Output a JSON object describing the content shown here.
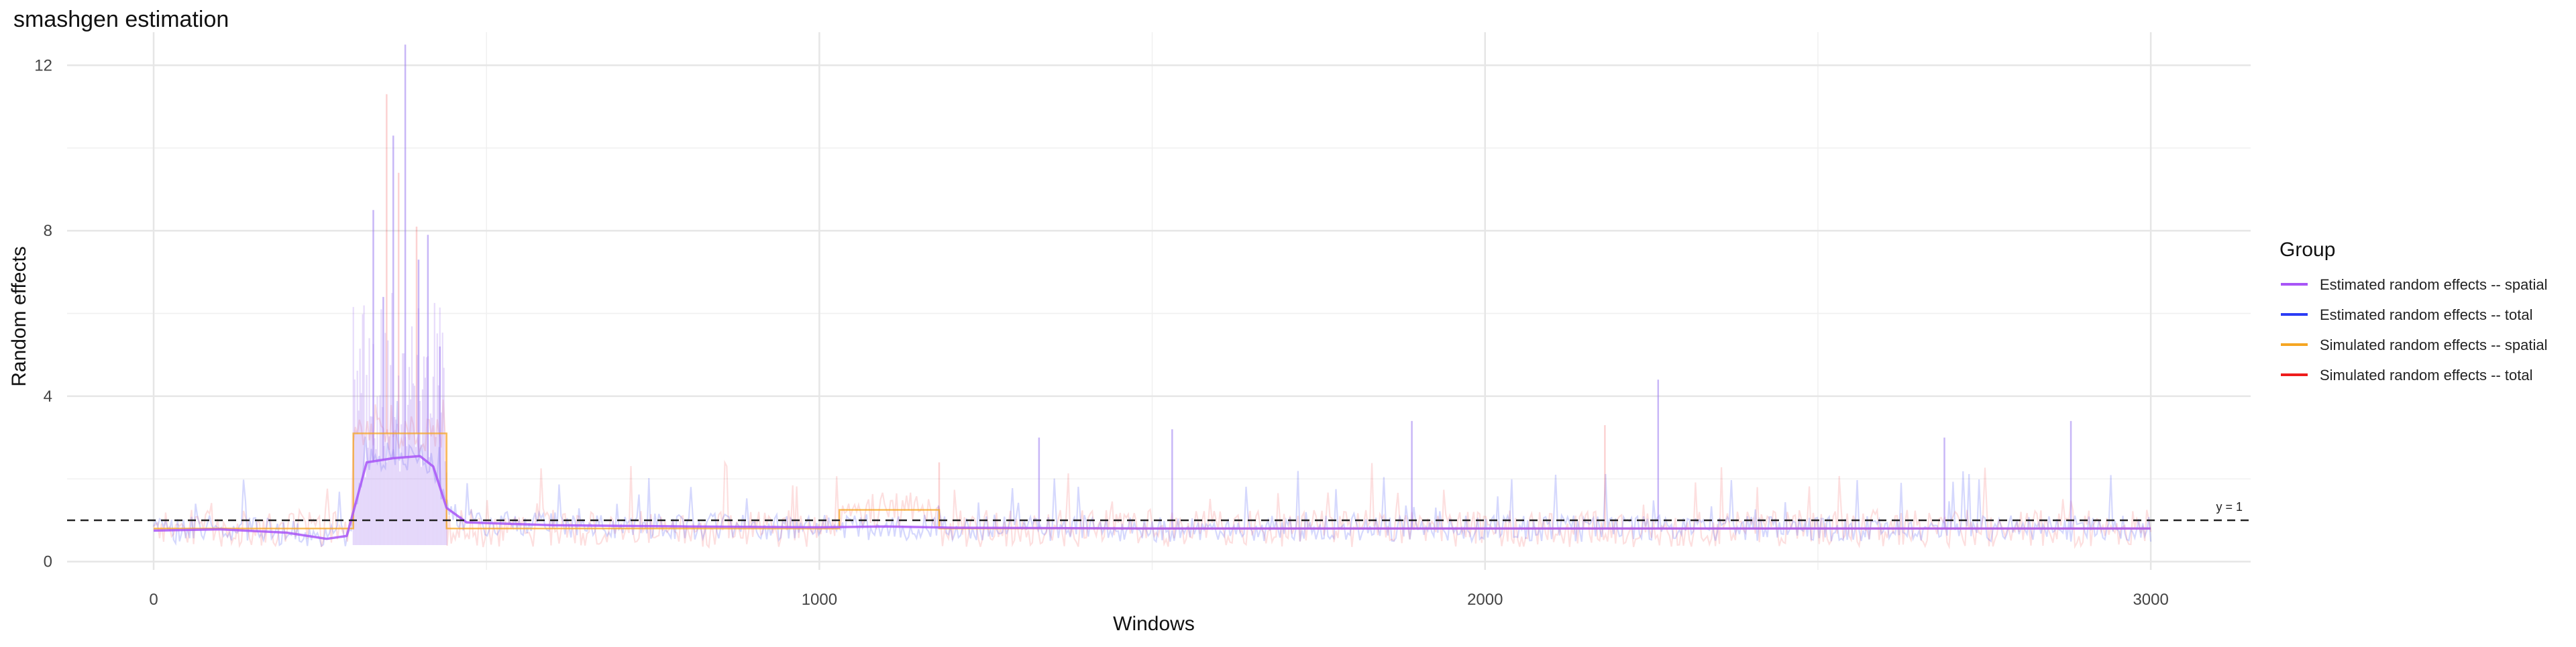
{
  "chart_data": {
    "type": "line",
    "title": "smashgen estimation",
    "xlabel": "Windows",
    "ylabel": "Random effects",
    "xlim": [
      -130,
      3150
    ],
    "ylim": [
      -0.2,
      12.8
    ],
    "x_ticks": [
      0,
      1000,
      2000,
      3000
    ],
    "y_ticks": [
      0,
      4,
      8,
      12
    ],
    "grid": true,
    "reference_line": {
      "y": 1,
      "label": "y = 1",
      "style": "dashed"
    },
    "legend": {
      "title": "Group",
      "position": "right",
      "entries": [
        {
          "label": "Estimated random effects -- spatial",
          "color": "#a855f7"
        },
        {
          "label": "Estimated random effects -- total",
          "color": "#2b3cf5"
        },
        {
          "label": "Simulated random effects -- spatial",
          "color": "#f5a623"
        },
        {
          "label": "Simulated random effects -- total",
          "color": "#ee1c1c"
        }
      ]
    },
    "series": [
      {
        "name": "Estimated random effects -- spatial",
        "color": "#a855f7",
        "x": [
          0,
          100,
          200,
          260,
          290,
          300,
          320,
          360,
          400,
          420,
          440,
          470,
          600,
          800,
          1000,
          1100,
          1200,
          1500,
          2000,
          2500,
          3000
        ],
        "y": [
          0.75,
          0.78,
          0.7,
          0.55,
          0.62,
          1.2,
          2.4,
          2.5,
          2.55,
          2.3,
          1.3,
          0.95,
          0.88,
          0.85,
          0.83,
          0.85,
          0.82,
          0.8,
          0.8,
          0.8,
          0.8
        ]
      },
      {
        "name": "Simulated random effects -- spatial",
        "color": "#f5a623",
        "x": [
          0,
          300,
          300,
          440,
          440,
          1030,
          1030,
          1180,
          1180,
          3000
        ],
        "y": [
          0.8,
          0.8,
          3.1,
          3.1,
          0.8,
          0.8,
          1.25,
          1.25,
          0.8,
          0.8
        ]
      },
      {
        "name": "Estimated random effects -- total",
        "color": "#2b3cf5",
        "note_pattern": "noisy per-window values around the spatial curve",
        "peaks": [
          [
            330,
            8.5
          ],
          [
            345,
            6.4
          ],
          [
            360,
            10.3
          ],
          [
            378,
            12.5
          ],
          [
            398,
            7.3
          ],
          [
            412,
            7.9
          ],
          [
            430,
            5.2
          ],
          [
            1330,
            3.0
          ],
          [
            1530,
            3.2
          ],
          [
            1890,
            3.4
          ],
          [
            2260,
            4.4
          ],
          [
            2690,
            3.0
          ],
          [
            2880,
            3.4
          ]
        ]
      },
      {
        "name": "Simulated random effects -- total",
        "color": "#ee1c1c",
        "note_pattern": "noisy per-window values around the simulated spatial step",
        "peaks": [
          [
            350,
            11.3
          ],
          [
            368,
            9.4
          ],
          [
            395,
            8.1
          ],
          [
            1180,
            2.4
          ],
          [
            2180,
            3.3
          ]
        ]
      }
    ]
  }
}
